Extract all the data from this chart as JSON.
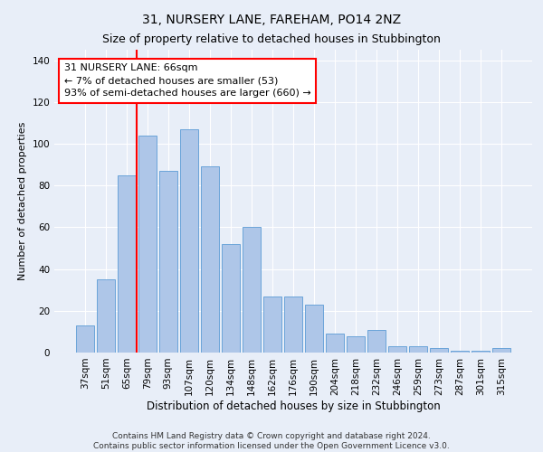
{
  "title": "31, NURSERY LANE, FAREHAM, PO14 2NZ",
  "subtitle": "Size of property relative to detached houses in Stubbington",
  "xlabel": "Distribution of detached houses by size in Stubbington",
  "ylabel": "Number of detached properties",
  "bar_labels": [
    "37sqm",
    "51sqm",
    "65sqm",
    "79sqm",
    "93sqm",
    "107sqm",
    "120sqm",
    "134sqm",
    "148sqm",
    "162sqm",
    "176sqm",
    "190sqm",
    "204sqm",
    "218sqm",
    "232sqm",
    "246sqm",
    "259sqm",
    "273sqm",
    "287sqm",
    "301sqm",
    "315sqm"
  ],
  "bar_values": [
    13,
    35,
    85,
    104,
    87,
    107,
    89,
    52,
    60,
    27,
    27,
    23,
    9,
    8,
    11,
    3,
    3,
    2,
    1,
    1,
    2
  ],
  "bar_color": "#aec6e8",
  "bar_edge_color": "#5b9bd5",
  "background_color": "#e8eef8",
  "grid_color": "#ffffff",
  "annotation_line_label_index": 2,
  "annotation_box_text": "31 NURSERY LANE: 66sqm\n← 7% of detached houses are smaller (53)\n93% of semi-detached houses are larger (660) →",
  "annotation_box_color": "white",
  "annotation_box_edge_color": "red",
  "annotation_line_color": "red",
  "ylim": [
    0,
    145
  ],
  "yticks": [
    0,
    20,
    40,
    60,
    80,
    100,
    120,
    140
  ],
  "footnote": "Contains HM Land Registry data © Crown copyright and database right 2024.\nContains public sector information licensed under the Open Government Licence v3.0.",
  "title_fontsize": 10,
  "subtitle_fontsize": 9,
  "xlabel_fontsize": 8.5,
  "ylabel_fontsize": 8,
  "tick_fontsize": 7.5,
  "annotation_fontsize": 8,
  "footnote_fontsize": 6.5
}
